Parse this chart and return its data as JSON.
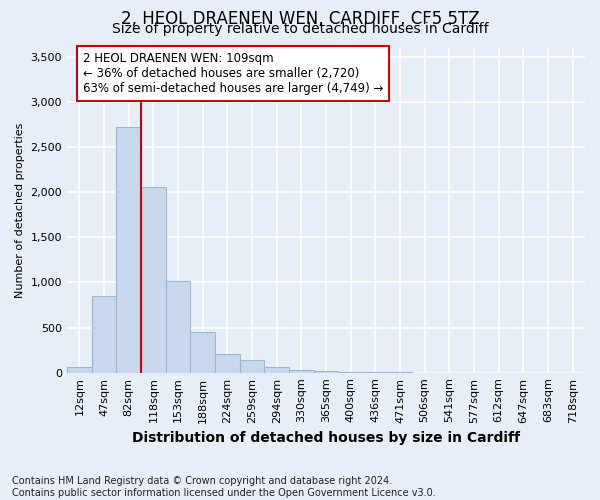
{
  "title": "2, HEOL DRAENEN WEN, CARDIFF, CF5 5TZ",
  "subtitle": "Size of property relative to detached houses in Cardiff",
  "xlabel": "Distribution of detached houses by size in Cardiff",
  "ylabel": "Number of detached properties",
  "footnote": "Contains HM Land Registry data © Crown copyright and database right 2024.\nContains public sector information licensed under the Open Government Licence v3.0.",
  "bin_labels": [
    "12sqm",
    "47sqm",
    "82sqm",
    "118sqm",
    "153sqm",
    "188sqm",
    "224sqm",
    "259sqm",
    "294sqm",
    "330sqm",
    "365sqm",
    "400sqm",
    "436sqm",
    "471sqm",
    "506sqm",
    "541sqm",
    "577sqm",
    "612sqm",
    "647sqm",
    "683sqm",
    "718sqm"
  ],
  "bar_values": [
    65,
    850,
    2720,
    2060,
    1010,
    455,
    205,
    145,
    65,
    30,
    15,
    8,
    4,
    2,
    1,
    0,
    0,
    0,
    0,
    0,
    0
  ],
  "bar_color": "#c8d8ec",
  "bar_edge_color": "#9ab8d0",
  "vline_color": "#cc0000",
  "vline_position": 3,
  "annotation_text": "2 HEOL DRAENEN WEN: 109sqm\n← 36% of detached houses are smaller (2,720)\n63% of semi-detached houses are larger (4,749) →",
  "annotation_box_facecolor": "#ffffff",
  "annotation_box_edgecolor": "#cc0000",
  "ylim": [
    0,
    3600
  ],
  "yticks": [
    0,
    500,
    1000,
    1500,
    2000,
    2500,
    3000,
    3500
  ],
  "bg_color": "#e8eef8",
  "plot_bg_color": "#e8eef8",
  "grid_color": "#ffffff",
  "title_fontsize": 12,
  "subtitle_fontsize": 10,
  "xlabel_fontsize": 10,
  "ylabel_fontsize": 8,
  "tick_fontsize": 8,
  "footnote_fontsize": 7
}
